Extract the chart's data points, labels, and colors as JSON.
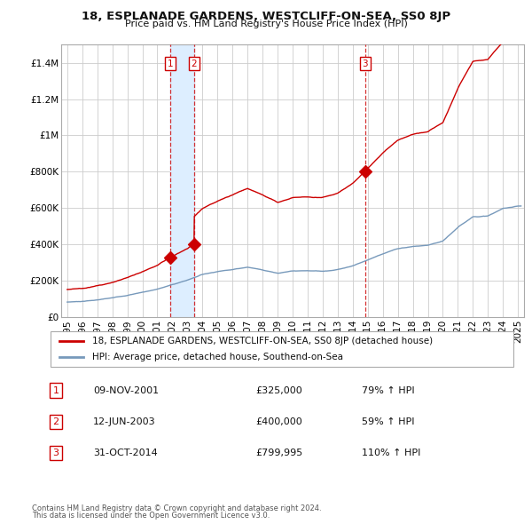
{
  "title": "18, ESPLANADE GARDENS, WESTCLIFF-ON-SEA, SS0 8JP",
  "subtitle": "Price paid vs. HM Land Registry's House Price Index (HPI)",
  "legend_line1": "18, ESPLANADE GARDENS, WESTCLIFF-ON-SEA, SS0 8JP (detached house)",
  "legend_line2": "HPI: Average price, detached house, Southend-on-Sea",
  "footer1": "Contains HM Land Registry data © Crown copyright and database right 2024.",
  "footer2": "This data is licensed under the Open Government Licence v3.0.",
  "transactions": [
    {
      "num": 1,
      "date": "09-NOV-2001",
      "price": "£325,000",
      "change": "79% ↑ HPI",
      "year": 2001.86
    },
    {
      "num": 2,
      "date": "12-JUN-2003",
      "price": "£400,000",
      "change": "59% ↑ HPI",
      "year": 2003.44
    },
    {
      "num": 3,
      "date": "31-OCT-2014",
      "price": "£799,995",
      "change": "110% ↑ HPI",
      "year": 2014.83
    }
  ],
  "red_line_color": "#cc0000",
  "blue_line_color": "#7799bb",
  "vline_color": "#cc0000",
  "shade_color": "#ddeeff",
  "grid_color": "#cccccc",
  "bg_color": "#ffffff",
  "ylim": [
    0,
    1500000
  ],
  "ytick_step": 200000,
  "xlim_start": 1994.6,
  "xlim_end": 2025.4,
  "hpi_years": [
    1995,
    1996,
    1997,
    1998,
    1999,
    2000,
    2001,
    2002,
    2003,
    2004,
    2005,
    2006,
    2007,
    2008,
    2009,
    2010,
    2011,
    2012,
    2013,
    2014,
    2015,
    2016,
    2017,
    2018,
    2019,
    2020,
    2021,
    2022,
    2023,
    2024,
    2025
  ],
  "hpi_vals": [
    82000,
    87000,
    95000,
    105000,
    120000,
    138000,
    155000,
    180000,
    205000,
    238000,
    255000,
    268000,
    282000,
    268000,
    252000,
    262000,
    262000,
    260000,
    270000,
    292000,
    325000,
    360000,
    388000,
    400000,
    405000,
    425000,
    500000,
    560000,
    565000,
    605000,
    620000
  ],
  "p1": 325000,
  "p2": 400000,
  "p3": 799995,
  "t1": 2001.86,
  "t2": 2003.44,
  "t3": 2014.83
}
